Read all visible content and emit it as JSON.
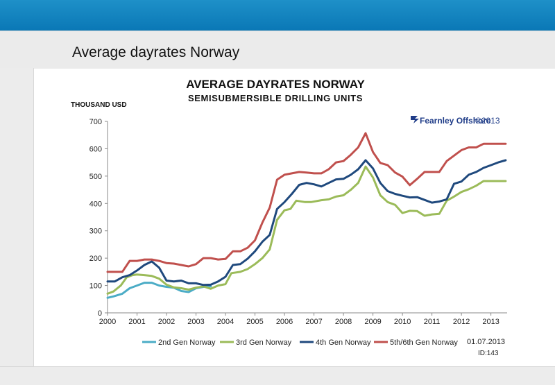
{
  "slide": {
    "title": "Average dayrates Norway"
  },
  "logo": {
    "brand": "Fearnley Offshore",
    "copyright": "©2013"
  },
  "footer": {
    "date": "01.07.2013",
    "id": "ID:143"
  },
  "colors": {
    "top_bar": "#0d7ab8",
    "series": [
      "#4bacc6",
      "#9bbb59",
      "#1f497d",
      "#c0504d"
    ]
  },
  "chart_data": {
    "type": "line",
    "title": "AVERAGE DAYRATES NORWAY",
    "subtitle": "SEMISUBMERSIBLE DRILLING UNITS",
    "ylabel": "THOUSAND USD",
    "xlabel": "",
    "ylim": [
      0,
      700
    ],
    "yticks": [
      "0",
      "100",
      "200",
      "300",
      "400",
      "500",
      "600",
      "700"
    ],
    "xlim": [
      2000,
      2013.55
    ],
    "xticks": [
      "2000",
      "2001",
      "2002",
      "2003",
      "2004",
      "2005",
      "2006",
      "2007",
      "2008",
      "2009",
      "2010",
      "2011",
      "2012",
      "2013"
    ],
    "grid": false,
    "legend": "bottom",
    "series": [
      {
        "name": "2nd Gen Norway",
        "points": [
          [
            2000,
            55
          ],
          [
            2000.2,
            60
          ],
          [
            2000.5,
            70
          ],
          [
            2000.75,
            90
          ],
          [
            2001,
            100
          ],
          [
            2001.25,
            110
          ],
          [
            2001.5,
            110
          ],
          [
            2001.75,
            100
          ],
          [
            2002,
            95
          ],
          [
            2002.25,
            92
          ],
          [
            2002.5,
            80
          ],
          [
            2002.75,
            76
          ],
          [
            2003,
            90
          ],
          [
            2003.25,
            95
          ],
          [
            2003.5,
            97
          ]
        ]
      },
      {
        "name": "3rd Gen Norway",
        "points": [
          [
            2000,
            70
          ],
          [
            2000.2,
            78
          ],
          [
            2000.45,
            100
          ],
          [
            2000.65,
            130
          ],
          [
            2000.85,
            138
          ],
          [
            2001,
            140
          ],
          [
            2001.25,
            138
          ],
          [
            2001.5,
            135
          ],
          [
            2001.75,
            125
          ],
          [
            2002,
            103
          ],
          [
            2002.25,
            93
          ],
          [
            2002.5,
            90
          ],
          [
            2002.75,
            85
          ],
          [
            2003,
            92
          ],
          [
            2003.25,
            97
          ],
          [
            2003.5,
            88
          ],
          [
            2003.75,
            100
          ],
          [
            2004,
            105
          ],
          [
            2004.2,
            145
          ],
          [
            2004.5,
            150
          ],
          [
            2004.75,
            160
          ],
          [
            2005,
            178
          ],
          [
            2005.25,
            200
          ],
          [
            2005.5,
            232
          ],
          [
            2005.75,
            340
          ],
          [
            2006,
            375
          ],
          [
            2006.2,
            380
          ],
          [
            2006.4,
            410
          ],
          [
            2006.7,
            405
          ],
          [
            2006.9,
            405
          ],
          [
            2007.25,
            412
          ],
          [
            2007.5,
            415
          ],
          [
            2007.75,
            425
          ],
          [
            2008,
            430
          ],
          [
            2008.25,
            450
          ],
          [
            2008.5,
            475
          ],
          [
            2008.75,
            535
          ],
          [
            2009,
            495
          ],
          [
            2009.25,
            430
          ],
          [
            2009.5,
            405
          ],
          [
            2009.75,
            395
          ],
          [
            2010,
            365
          ],
          [
            2010.25,
            373
          ],
          [
            2010.5,
            372
          ],
          [
            2010.75,
            355
          ],
          [
            2011,
            360
          ],
          [
            2011.25,
            362
          ],
          [
            2011.5,
            410
          ],
          [
            2011.75,
            425
          ],
          [
            2012,
            442
          ],
          [
            2012.25,
            452
          ],
          [
            2012.5,
            465
          ],
          [
            2012.75,
            482
          ],
          [
            2013,
            482
          ],
          [
            2013.25,
            482
          ],
          [
            2013.5,
            482
          ]
        ]
      },
      {
        "name": "4th Gen Norway",
        "points": [
          [
            2000,
            115
          ],
          [
            2000.25,
            115
          ],
          [
            2000.5,
            130
          ],
          [
            2000.75,
            138
          ],
          [
            2001,
            155
          ],
          [
            2001.25,
            175
          ],
          [
            2001.5,
            188
          ],
          [
            2001.75,
            165
          ],
          [
            2002,
            118
          ],
          [
            2002.25,
            115
          ],
          [
            2002.5,
            118
          ],
          [
            2002.75,
            108
          ],
          [
            2003,
            108
          ],
          [
            2003.25,
            102
          ],
          [
            2003.5,
            103
          ],
          [
            2003.75,
            115
          ],
          [
            2004,
            132
          ],
          [
            2004.25,
            175
          ],
          [
            2004.5,
            178
          ],
          [
            2004.75,
            198
          ],
          [
            2005,
            225
          ],
          [
            2005.25,
            260
          ],
          [
            2005.5,
            285
          ],
          [
            2005.75,
            380
          ],
          [
            2006,
            405
          ],
          [
            2006.25,
            435
          ],
          [
            2006.5,
            468
          ],
          [
            2006.75,
            475
          ],
          [
            2007,
            470
          ],
          [
            2007.25,
            462
          ],
          [
            2007.5,
            475
          ],
          [
            2007.75,
            488
          ],
          [
            2008,
            490
          ],
          [
            2008.25,
            505
          ],
          [
            2008.5,
            525
          ],
          [
            2008.75,
            558
          ],
          [
            2009,
            528
          ],
          [
            2009.25,
            475
          ],
          [
            2009.5,
            445
          ],
          [
            2009.75,
            435
          ],
          [
            2010,
            428
          ],
          [
            2010.25,
            422
          ],
          [
            2010.5,
            423
          ],
          [
            2010.75,
            413
          ],
          [
            2011,
            403
          ],
          [
            2011.25,
            407
          ],
          [
            2011.5,
            415
          ],
          [
            2011.75,
            472
          ],
          [
            2012,
            480
          ],
          [
            2012.25,
            505
          ],
          [
            2012.5,
            515
          ],
          [
            2012.75,
            530
          ],
          [
            2013,
            540
          ],
          [
            2013.25,
            550
          ],
          [
            2013.5,
            558
          ]
        ]
      },
      {
        "name": "5th/6th Gen Norway",
        "points": [
          [
            2000,
            150
          ],
          [
            2000.25,
            150
          ],
          [
            2000.5,
            150
          ],
          [
            2000.75,
            190
          ],
          [
            2001,
            190
          ],
          [
            2001.25,
            195
          ],
          [
            2001.5,
            195
          ],
          [
            2001.75,
            190
          ],
          [
            2002,
            182
          ],
          [
            2002.25,
            180
          ],
          [
            2002.5,
            175
          ],
          [
            2002.75,
            170
          ],
          [
            2003,
            178
          ],
          [
            2003.25,
            200
          ],
          [
            2003.5,
            200
          ],
          [
            2003.75,
            195
          ],
          [
            2004,
            197
          ],
          [
            2004.25,
            225
          ],
          [
            2004.5,
            225
          ],
          [
            2004.75,
            238
          ],
          [
            2005,
            265
          ],
          [
            2005.25,
            330
          ],
          [
            2005.5,
            385
          ],
          [
            2005.75,
            487
          ],
          [
            2006,
            505
          ],
          [
            2006.25,
            510
          ],
          [
            2006.5,
            515
          ],
          [
            2006.75,
            513
          ],
          [
            2007,
            510
          ],
          [
            2007.25,
            510
          ],
          [
            2007.5,
            525
          ],
          [
            2007.75,
            550
          ],
          [
            2008,
            555
          ],
          [
            2008.25,
            578
          ],
          [
            2008.5,
            605
          ],
          [
            2008.75,
            657
          ],
          [
            2009,
            588
          ],
          [
            2009.25,
            548
          ],
          [
            2009.5,
            540
          ],
          [
            2009.75,
            513
          ],
          [
            2010,
            498
          ],
          [
            2010.25,
            467
          ],
          [
            2010.5,
            490
          ],
          [
            2010.75,
            515
          ],
          [
            2011,
            515
          ],
          [
            2011.25,
            515
          ],
          [
            2011.5,
            555
          ],
          [
            2011.75,
            575
          ],
          [
            2012,
            595
          ],
          [
            2012.25,
            605
          ],
          [
            2012.5,
            605
          ],
          [
            2012.75,
            618
          ],
          [
            2013,
            618
          ],
          [
            2013.25,
            618
          ],
          [
            2013.5,
            618
          ]
        ]
      }
    ]
  }
}
